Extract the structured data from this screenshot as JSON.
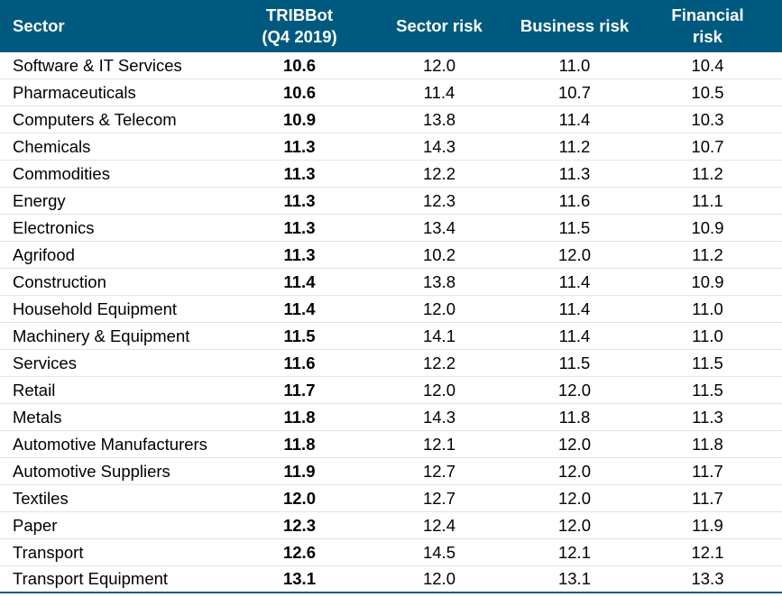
{
  "table": {
    "header": [
      "Sector",
      "TRIBBot (Q4 2019)",
      "Sector risk",
      "Business risk",
      "Financial risk"
    ],
    "rows": [
      [
        "Software & IT Services",
        "10.6",
        "12.0",
        "11.0",
        "10.4"
      ],
      [
        "Pharmaceuticals",
        "10.6",
        "11.4",
        "10.7",
        "10.5"
      ],
      [
        "Computers & Telecom",
        "10.9",
        "13.8",
        "11.4",
        "10.3"
      ],
      [
        "Chemicals",
        "11.3",
        "14.3",
        "11.2",
        "10.7"
      ],
      [
        "Commodities",
        "11.3",
        "12.2",
        "11.3",
        "11.2"
      ],
      [
        "Energy",
        "11.3",
        "12.3",
        "11.6",
        "11.1"
      ],
      [
        "Electronics",
        "11.3",
        "13.4",
        "11.5",
        "10.9"
      ],
      [
        "Agrifood",
        "11.3",
        "10.2",
        "12.0",
        "11.2"
      ],
      [
        "Construction",
        "11.4",
        "13.8",
        "11.4",
        "10.9"
      ],
      [
        "Household Equipment",
        "11.4",
        "12.0",
        "11.4",
        "11.0"
      ],
      [
        "Machinery & Equipment",
        "11.5",
        "14.1",
        "11.4",
        "11.0"
      ],
      [
        "Services",
        "11.6",
        "12.2",
        "11.5",
        "11.5"
      ],
      [
        "Retail",
        "11.7",
        "12.0",
        "12.0",
        "11.5"
      ],
      [
        "Metals",
        "11.8",
        "14.3",
        "11.8",
        "11.3"
      ],
      [
        "Automotive Manufacturers",
        "11.8",
        "12.1",
        "12.0",
        "11.8"
      ],
      [
        "Automotive Suppliers",
        "11.9",
        "12.7",
        "12.0",
        "11.7"
      ],
      [
        "Textiles",
        "12.0",
        "12.7",
        "12.0",
        "11.7"
      ],
      [
        "Paper",
        "12.3",
        "12.4",
        "12.0",
        "11.9"
      ],
      [
        "Transport",
        "12.6",
        "14.5",
        "12.1",
        "12.1"
      ],
      [
        "Transport Equipment",
        "13.1",
        "12.0",
        "13.1",
        "13.3"
      ]
    ]
  }
}
